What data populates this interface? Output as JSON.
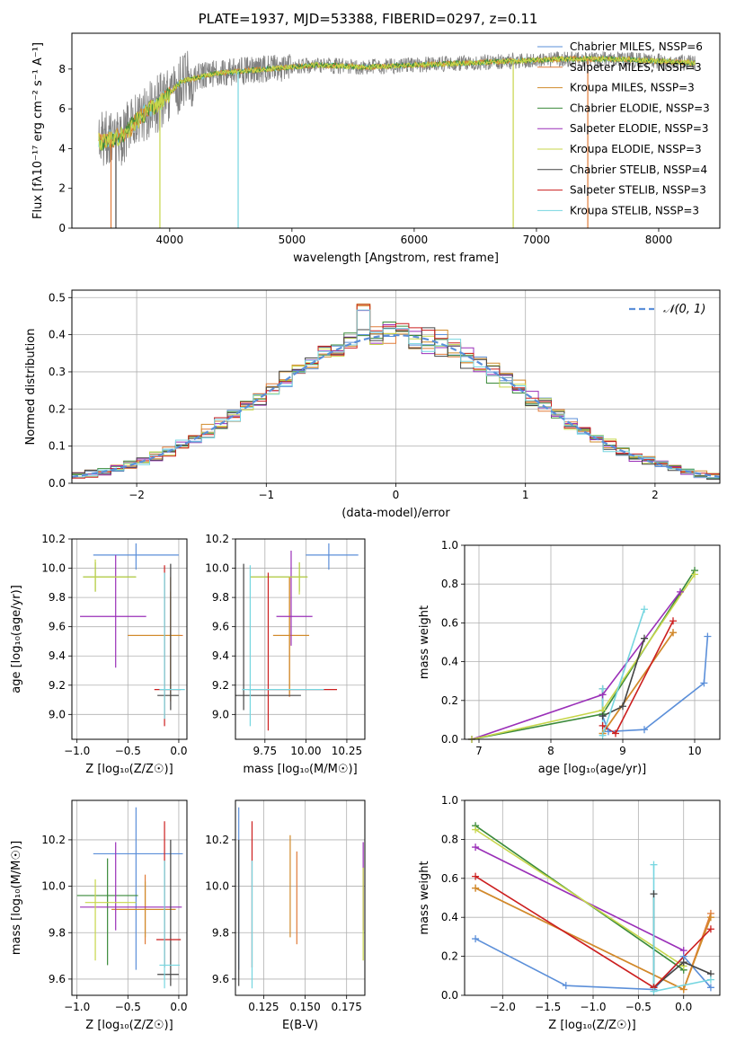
{
  "title": "PLATE=1937, MJD=53388, FIBERID=0297, z=0.11",
  "colors": {
    "spec_gray": "#808080",
    "chabrier_miles": "#5b8fd9",
    "salpeter_miles": "#e07b39",
    "kroupa_miles": "#d18b2b",
    "chabrier_elodie": "#3a8a3a",
    "salpeter_elodie": "#9a2fb8",
    "kroupa_elodie": "#c7d64a",
    "chabrier_stelib": "#444444",
    "salpeter_stelib": "#cc1f1f",
    "kroupa_stelib": "#76d6e0",
    "gauss": "#5b8fd9",
    "grid": "#b0b0b0"
  },
  "panels": {
    "spectrum": {
      "xlabel": "wavelength [Angstrom, rest frame]",
      "ylabel": "Flux [fλ10⁻¹⁷ erg cm⁻² s⁻¹ A⁻¹]",
      "xticks": [
        "4000",
        "5000",
        "6000",
        "7000",
        "8000"
      ],
      "yticks": [
        "0",
        "2",
        "4",
        "6",
        "8"
      ],
      "legend": [
        "Chabrier MILES, NSSP=6",
        "Salpeter MILES, NSSP=3",
        "Kroupa MILES, NSSP=3",
        "Chabrier ELODIE, NSSP=3",
        "Salpeter ELODIE, NSSP=3",
        "Kroupa ELODIE, NSSP=3",
        "Chabrier STELIB, NSSP=4",
        "Salpeter STELIB, NSSP=3",
        "Kroupa STELIB, NSSP=3"
      ]
    },
    "residuals": {
      "xlabel": "(data-model)/error",
      "ylabel": "Normed distribution",
      "xticks": [
        "−2",
        "−1",
        "0",
        "1",
        "2"
      ],
      "yticks": [
        "0.0",
        "0.1",
        "0.2",
        "0.3",
        "0.4",
        "0.5"
      ],
      "legend": "𝒩(0, 1)"
    },
    "age_z": {
      "xlabel": "Z [log₁₀(Z/Z☉)]",
      "ylabel": "age  [log₁₀(age/yr)]",
      "xticks": [
        "−1.0",
        "−0.5",
        "0.0"
      ],
      "yticks": [
        "9.0",
        "9.2",
        "9.4",
        "9.6",
        "9.8",
        "10.0",
        "10.2"
      ]
    },
    "age_mass": {
      "xlabel": "mass [log₁₀(M/M☉)]",
      "xticks": [
        "9.75",
        "10.00",
        "10.25"
      ],
      "yticks": [
        "9.0",
        "9.2",
        "9.4",
        "9.6",
        "9.8",
        "10.0",
        "10.2"
      ]
    },
    "mw_age": {
      "xlabel": "age  [log₁₀(age/yr)]",
      "ylabel": "mass weight",
      "xticks": [
        "7",
        "8",
        "9",
        "10"
      ],
      "yticks": [
        "0.0",
        "0.2",
        "0.4",
        "0.6",
        "0.8",
        "1.0"
      ]
    },
    "mass_z": {
      "xlabel": "Z [log₁₀(Z/Z☉)]",
      "ylabel": "mass [log₁₀(M/M☉)]",
      "xticks": [
        "−1.0",
        "−0.5",
        "0.0"
      ],
      "yticks": [
        "9.6",
        "9.8",
        "10.0",
        "10.2"
      ]
    },
    "mass_ebv": {
      "xlabel": "E(B-V)",
      "xticks": [
        "0.125",
        "0.150",
        "0.175"
      ],
      "yticks": [
        "9.6",
        "9.8",
        "10.0",
        "10.2"
      ]
    },
    "mw_z": {
      "xlabel": "Z [log₁₀(Z/Z☉)]",
      "ylabel": "mass weight",
      "xticks": [
        "−2.0",
        "−1.5",
        "−1.0",
        "−0.5",
        "0.0"
      ],
      "yticks": [
        "0.0",
        "0.2",
        "0.4",
        "0.6",
        "0.8",
        "1.0"
      ]
    }
  },
  "chart_data": [
    {
      "type": "line",
      "panel": "spectrum",
      "xlim": [
        3200,
        8500
      ],
      "ylim": [
        0,
        9.8
      ],
      "grid": false,
      "legend_position": "right",
      "shape_points": [
        [
          3420,
          4.3
        ],
        [
          3600,
          4.6
        ],
        [
          3800,
          5.8
        ],
        [
          3950,
          6.5
        ],
        [
          4100,
          7.4
        ],
        [
          4400,
          7.8
        ],
        [
          4800,
          8.0
        ],
        [
          5200,
          8.2
        ],
        [
          5600,
          8.1
        ],
        [
          6000,
          8.2
        ],
        [
          6400,
          8.3
        ],
        [
          6800,
          8.4
        ],
        [
          7200,
          8.5
        ],
        [
          7600,
          8.5
        ],
        [
          8000,
          8.4
        ],
        [
          8300,
          8.3
        ]
      ],
      "dropouts": [
        [
          3520,
          "salpeter_miles"
        ],
        [
          3560,
          "chabrier_stelib"
        ],
        [
          3920,
          "kroupa_elodie"
        ],
        [
          4560,
          "kroupa_stelib"
        ],
        [
          6810,
          "kroupa_elodie"
        ],
        [
          7420,
          "salpeter_miles"
        ]
      ]
    },
    {
      "type": "bar",
      "panel": "residuals",
      "xlim": [
        -2.5,
        2.5
      ],
      "ylim": [
        0,
        0.52
      ],
      "grid": true,
      "bin_width": 0.1,
      "gaussian": {
        "mean": 0,
        "sigma": 1
      },
      "highlights": [
        [
          -0.3,
          0.49
        ],
        [
          -0.6,
          0.37
        ],
        [
          0.0,
          0.43
        ]
      ]
    },
    {
      "type": "scatter",
      "panel": "age_z",
      "xlim": [
        -1.05,
        0.08
      ],
      "ylim": [
        8.83,
        10.2
      ],
      "grid": true,
      "errorbars": [
        {
          "model": "chabrier_miles",
          "x": -0.42,
          "xerr": [
            0.42,
            0.42
          ],
          "y": 10.09,
          "yerr": [
            0.1,
            0.08
          ]
        },
        {
          "model": "salpeter_miles",
          "x": -0.08,
          "xerr": [
            0.42,
            0.12
          ],
          "y": 9.54,
          "yerr": [
            0.45,
            0.3
          ]
        },
        {
          "model": "kroupa_miles",
          "x": -0.08,
          "xerr": [
            0.42,
            0.1
          ],
          "y": 9.54,
          "yerr": [
            0.4,
            0.4
          ]
        },
        {
          "model": "chabrier_elodie",
          "x": -0.82,
          "xerr": [
            0.12,
            0.4
          ],
          "y": 9.94,
          "yerr": [
            0.1,
            0.1
          ]
        },
        {
          "model": "salpeter_elodie",
          "x": -0.62,
          "xerr": [
            0.35,
            0.3
          ],
          "y": 9.67,
          "yerr": [
            0.35,
            0.42
          ]
        },
        {
          "model": "kroupa_elodie",
          "x": -0.82,
          "xerr": [
            0.12,
            0.4
          ],
          "y": 9.94,
          "yerr": [
            0.1,
            0.12
          ]
        },
        {
          "model": "chabrier_stelib",
          "x": -0.08,
          "xerr": [
            0.13,
            0.08
          ],
          "y": 9.13,
          "yerr": [
            0.1,
            0.9
          ]
        },
        {
          "model": "salpeter_stelib",
          "x": -0.14,
          "xerr": [
            0.1,
            0.16
          ],
          "y": 9.17,
          "yerr": [
            0.25,
            0.85
          ]
        },
        {
          "model": "kroupa_stelib",
          "x": -0.14,
          "xerr": [
            0.05,
            0.2
          ],
          "y": 9.17,
          "yerr": [
            0.2,
            0.8
          ]
        }
      ]
    },
    {
      "type": "scatter",
      "panel": "age_mass",
      "xlim": [
        9.57,
        10.36
      ],
      "ylim": [
        8.83,
        10.2
      ],
      "grid": true,
      "errorbars": [
        {
          "model": "chabrier_miles",
          "x": 10.14,
          "xerr": [
            0.14,
            0.18
          ],
          "y": 10.09,
          "yerr": [
            0.1,
            0.08
          ]
        },
        {
          "model": "salpeter_miles",
          "x": 9.9,
          "xerr": [
            0.1,
            0.12
          ],
          "y": 9.54,
          "yerr": [
            0.42,
            0.4
          ]
        },
        {
          "model": "kroupa_miles",
          "x": 9.9,
          "xerr": [
            0.1,
            0.12
          ],
          "y": 9.54,
          "yerr": [
            0.4,
            0.4
          ]
        },
        {
          "model": "chabrier_elodie",
          "x": 9.96,
          "xerr": [
            0.3,
            0.05
          ],
          "y": 9.94,
          "yerr": [
            0.1,
            0.1
          ]
        },
        {
          "model": "salpeter_elodie",
          "x": 9.91,
          "xerr": [
            0.09,
            0.13
          ],
          "y": 9.67,
          "yerr": [
            0.2,
            0.45
          ]
        },
        {
          "model": "kroupa_elodie",
          "x": 9.96,
          "xerr": [
            0.3,
            0.05
          ],
          "y": 9.94,
          "yerr": [
            0.12,
            0.1
          ]
        },
        {
          "model": "chabrier_stelib",
          "x": 9.62,
          "xerr": [
            0.12,
            0.35
          ],
          "y": 9.13,
          "yerr": [
            0.1,
            0.9
          ]
        },
        {
          "model": "salpeter_stelib",
          "x": 9.77,
          "xerr": [
            0.12,
            0.42
          ],
          "y": 9.17,
          "yerr": [
            0.28,
            0.8
          ]
        },
        {
          "model": "kroupa_stelib",
          "x": 9.66,
          "xerr": [
            0.05,
            0.45
          ],
          "y": 9.17,
          "yerr": [
            0.25,
            0.85
          ]
        }
      ]
    },
    {
      "type": "line",
      "panel": "mw_age",
      "xlim": [
        6.8,
        10.35
      ],
      "ylim": [
        0,
        1.0
      ],
      "grid": true,
      "series": [
        {
          "model": "chabrier_miles",
          "x": [
            8.72,
            8.8,
            9.3,
            10.13,
            10.18
          ],
          "y": [
            0.12,
            0.04,
            0.05,
            0.29,
            0.53
          ]
        },
        {
          "model": "salpeter_miles",
          "x": [
            8.72,
            9.7
          ],
          "y": [
            0.03,
            0.55
          ]
        },
        {
          "model": "kroupa_miles",
          "x": [
            8.72,
            9.7
          ],
          "y": [
            0.03,
            0.55
          ]
        },
        {
          "model": "chabrier_elodie",
          "x": [
            6.9,
            8.72,
            10.0
          ],
          "y": [
            0.0,
            0.13,
            0.87
          ]
        },
        {
          "model": "salpeter_elodie",
          "x": [
            6.9,
            8.72,
            9.8
          ],
          "y": [
            0.0,
            0.23,
            0.76
          ]
        },
        {
          "model": "kroupa_elodie",
          "x": [
            6.9,
            8.72,
            10.0
          ],
          "y": [
            0.0,
            0.15,
            0.85
          ]
        },
        {
          "model": "chabrier_stelib",
          "x": [
            8.72,
            8.72,
            9.0,
            9.3
          ],
          "y": [
            0.26,
            0.12,
            0.17,
            0.52
          ]
        },
        {
          "model": "salpeter_stelib",
          "x": [
            8.72,
            8.9,
            9.7
          ],
          "y": [
            0.07,
            0.03,
            0.61
          ]
        },
        {
          "model": "kroupa_stelib",
          "x": [
            8.72,
            8.72,
            9.3
          ],
          "y": [
            0.26,
            0.02,
            0.67
          ]
        }
      ]
    },
    {
      "type": "scatter",
      "panel": "mass_z",
      "xlim": [
        -1.05,
        0.08
      ],
      "ylim": [
        9.53,
        10.37
      ],
      "grid": true,
      "errorbars": [
        {
          "model": "chabrier_miles",
          "x": -0.42,
          "xerr": [
            0.42,
            0.46
          ],
          "y": 10.14,
          "yerr": [
            0.5,
            0.2
          ]
        },
        {
          "model": "salpeter_miles",
          "x": -0.33,
          "xerr": [
            0.33,
            0.3
          ],
          "y": 9.9,
          "yerr": [
            0.15,
            0.15
          ]
        },
        {
          "model": "kroupa_miles",
          "x": -0.33,
          "xerr": [
            0.33,
            0.3
          ],
          "y": 9.9,
          "yerr": [
            0.12,
            0.12
          ]
        },
        {
          "model": "chabrier_elodie",
          "x": -0.7,
          "xerr": [
            0.3,
            0.3
          ],
          "y": 9.96,
          "yerr": [
            0.3,
            0.16
          ]
        },
        {
          "model": "salpeter_elodie",
          "x": -0.62,
          "xerr": [
            0.35,
            0.65
          ],
          "y": 9.91,
          "yerr": [
            0.1,
            0.28
          ]
        },
        {
          "model": "kroupa_elodie",
          "x": -0.82,
          "xerr": [
            0.1,
            0.4
          ],
          "y": 9.93,
          "yerr": [
            0.25,
            0.1
          ]
        },
        {
          "model": "chabrier_stelib",
          "x": -0.08,
          "xerr": [
            0.13,
            0.08
          ],
          "y": 9.62,
          "yerr": [
            0.05,
            0.58
          ]
        },
        {
          "model": "salpeter_stelib",
          "x": -0.14,
          "xerr": [
            0.08,
            0.16
          ],
          "y": 9.77,
          "yerr": [
            0.12,
            0.51
          ]
        },
        {
          "model": "kroupa_stelib",
          "x": -0.14,
          "xerr": [
            0.05,
            0.15
          ],
          "y": 9.66,
          "yerr": [
            0.1,
            0.45
          ]
        }
      ]
    },
    {
      "type": "scatter",
      "panel": "mass_ebv",
      "xlim": [
        0.108,
        0.186
      ],
      "ylim": [
        9.53,
        10.37
      ],
      "grid": true,
      "errorbars": [
        {
          "model": "chabrier_miles",
          "x": 0.11,
          "y": 10.14,
          "yerr": [
            0.5,
            0.2
          ]
        },
        {
          "model": "salpeter_miles",
          "x": 0.145,
          "y": 9.9,
          "yerr": [
            0.15,
            0.25
          ]
        },
        {
          "model": "salpeter_elodie",
          "x": 0.185,
          "y": 9.91,
          "yerr": [
            0.1,
            0.28
          ]
        },
        {
          "model": "kroupa_elodie",
          "x": 0.185,
          "y": 9.93,
          "yerr": [
            0.25,
            0.15
          ]
        },
        {
          "model": "chabrier_stelib",
          "x": 0.11,
          "y": 9.62,
          "yerr": [
            0.05,
            0.58
          ]
        },
        {
          "model": "salpeter_stelib",
          "x": 0.118,
          "y": 9.77,
          "yerr": [
            0.12,
            0.51
          ]
        },
        {
          "model": "kroupa_stelib",
          "x": 0.118,
          "y": 9.66,
          "yerr": [
            0.1,
            0.45
          ]
        },
        {
          "model": "kroupa_miles",
          "x": 0.141,
          "y": 9.9,
          "yerr": [
            0.12,
            0.32
          ]
        }
      ]
    },
    {
      "type": "line",
      "panel": "mw_z",
      "xlim": [
        -2.42,
        0.4
      ],
      "ylim": [
        0,
        1.0
      ],
      "grid": true,
      "series": [
        {
          "model": "chabrier_miles",
          "x": [
            -2.3,
            -1.3,
            -0.33,
            0.0,
            0.3
          ],
          "y": [
            0.29,
            0.05,
            0.03,
            0.2,
            0.04
          ]
        },
        {
          "model": "salpeter_miles",
          "x": [
            -2.3,
            0.0,
            0.3
          ],
          "y": [
            0.55,
            0.03,
            0.42
          ]
        },
        {
          "model": "kroupa_miles",
          "x": [
            -2.3,
            0.0,
            0.3
          ],
          "y": [
            0.55,
            0.03,
            0.4
          ]
        },
        {
          "model": "chabrier_elodie",
          "x": [
            -2.3,
            0.0
          ],
          "y": [
            0.87,
            0.13
          ]
        },
        {
          "model": "salpeter_elodie",
          "x": [
            -2.3,
            0.0
          ],
          "y": [
            0.76,
            0.23
          ]
        },
        {
          "model": "kroupa_elodie",
          "x": [
            -2.3,
            0.0
          ],
          "y": [
            0.85,
            0.15
          ]
        },
        {
          "model": "chabrier_stelib",
          "x": [
            -0.33,
            -0.33,
            0.0,
            0.3
          ],
          "y": [
            0.52,
            0.04,
            0.17,
            0.11
          ]
        },
        {
          "model": "salpeter_stelib",
          "x": [
            -2.3,
            -0.33,
            0.3
          ],
          "y": [
            0.61,
            0.04,
            0.34
          ]
        },
        {
          "model": "kroupa_stelib",
          "x": [
            -0.33,
            -0.33,
            0.3
          ],
          "y": [
            0.67,
            0.02,
            0.08
          ]
        }
      ]
    }
  ]
}
